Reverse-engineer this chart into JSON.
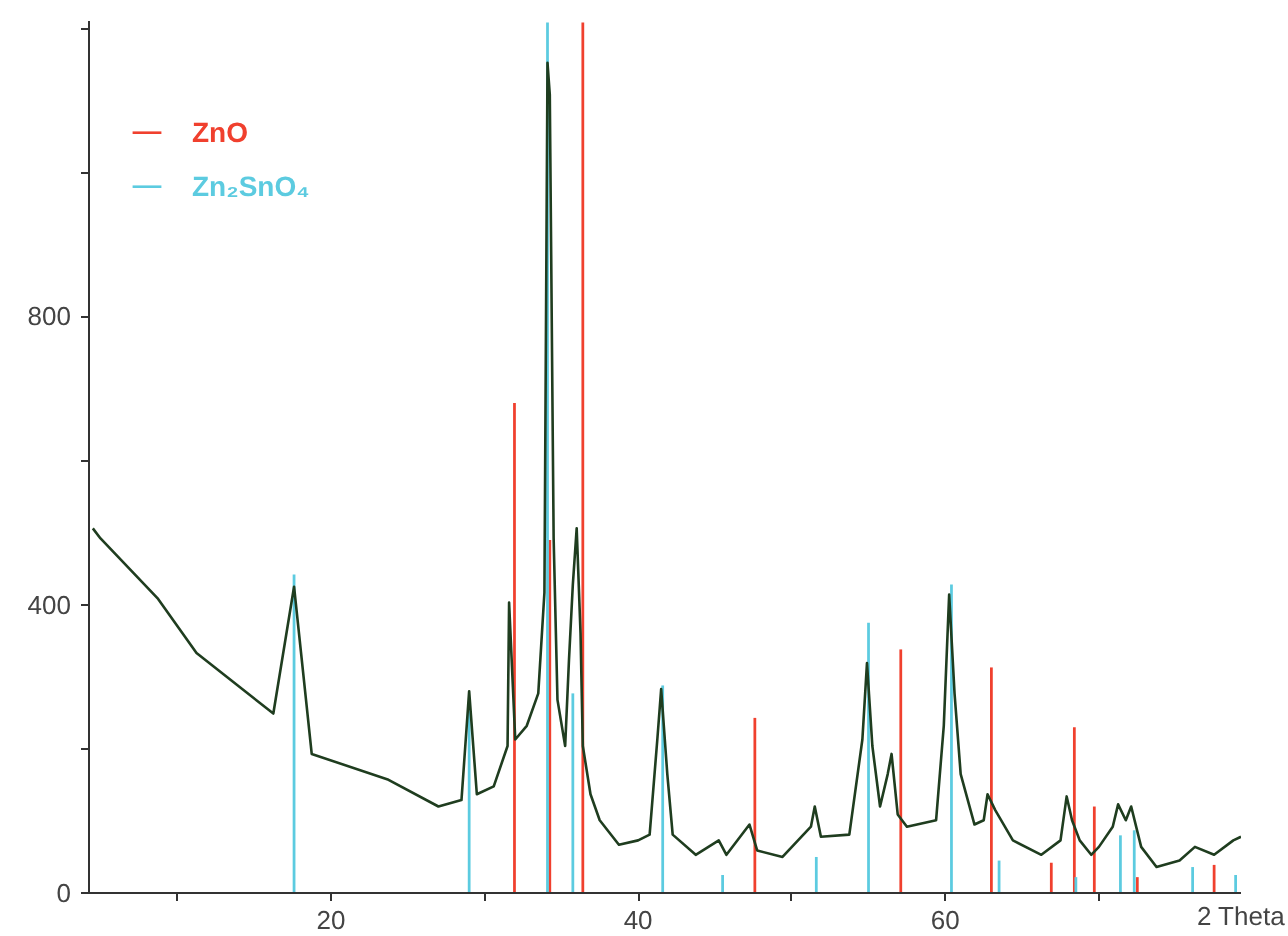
{
  "chart_data": {
    "type": "line",
    "xlabel": "2 Theta",
    "xlim": [
      4.25,
      79.25
    ],
    "ylim": [
      0,
      1210
    ],
    "xticks": [
      {
        "value": 10,
        "label": null
      },
      20,
      {
        "value": 30,
        "label": null
      },
      40,
      {
        "value": 50,
        "label": null
      },
      60,
      {
        "value": 70,
        "label": null
      }
    ],
    "yticks": [
      0,
      {
        "value": 200,
        "label": null
      },
      400,
      {
        "value": 600,
        "label": null
      },
      800,
      {
        "value": 1000,
        "label": null
      },
      {
        "value": 1200,
        "label": null
      }
    ],
    "grid": false,
    "legend": "top left",
    "marker": "none",
    "line_style": "solid",
    "series": [
      {
        "color": "#1f3d1f",
        "x": [
          4.5,
          5,
          8.75,
          11.25,
          16.25,
          17.6,
          18.75,
          23.75,
          27,
          28.5,
          29,
          29.5,
          30.6,
          31.5,
          31.6,
          32,
          32.75,
          33.5,
          33.9,
          34.1,
          34.25,
          34.5,
          34.75,
          35.25,
          35.5,
          35.75,
          36,
          36.25,
          36.4,
          36.9,
          37.5,
          38.75,
          40,
          40.75,
          41.25,
          41.5,
          41.9,
          42.25,
          43.75,
          45.25,
          45.75,
          47.25,
          47.75,
          49.4,
          51.25,
          51.5,
          51.9,
          53.75,
          54.6,
          54.9,
          55.25,
          55.75,
          56.25,
          56.5,
          56.9,
          57.5,
          59.4,
          59.9,
          60.25,
          60.6,
          61,
          61.9,
          62.5,
          62.75,
          63.25,
          64.4,
          66.25,
          67.5,
          67.9,
          68.25,
          68.75,
          69.5,
          70,
          70.9,
          71.25,
          71.75,
          72.1,
          72.75,
          73.75,
          75.25,
          76.25,
          77.5,
          78.75,
          79.25
        ],
        "values": [
          506,
          492,
          408,
          333,
          249,
          425,
          193,
          157,
          120,
          129,
          280,
          137,
          148,
          204,
          403,
          213,
          232,
          277,
          417,
          1152,
          1108,
          492,
          268,
          204,
          324,
          428,
          506,
          361,
          204,
          137,
          101,
          67,
          73,
          81,
          213,
          283,
          165,
          81,
          53,
          73,
          53,
          95,
          59,
          50,
          92,
          120,
          78,
          81,
          213,
          319,
          204,
          120,
          165,
          193,
          109,
          92,
          101,
          232,
          414,
          277,
          165,
          95,
          101,
          137,
          115,
          73,
          53,
          73,
          134,
          101,
          73,
          53,
          64,
          92,
          123,
          101,
          120,
          64,
          36,
          45,
          64,
          53,
          73,
          78
        ]
      },
      {
        "type": "bar",
        "name": "ZnO",
        "color": "#f0402e",
        "x": [
          31.95,
          34.25,
          36.4,
          47.6,
          57.1,
          63.0,
          66.9,
          68.4,
          69.7,
          72.5,
          77.5
        ],
        "values": [
          680,
          490,
          1208,
          243,
          338,
          313,
          42,
          230,
          120,
          22,
          39
        ]
      },
      {
        "type": "bar",
        "name": "Zn₂SnO₄",
        "color": "#5ccbe0",
        "x": [
          17.6,
          29.0,
          34.1,
          35.75,
          41.6,
          45.5,
          51.6,
          55.0,
          60.4,
          63.5,
          68.5,
          71.4,
          72.3,
          76.1,
          78.9
        ],
        "values": [
          442,
          263,
          1208,
          277,
          288,
          25,
          50,
          375,
          428,
          45,
          22,
          80,
          87,
          36,
          25
        ]
      }
    ]
  }
}
